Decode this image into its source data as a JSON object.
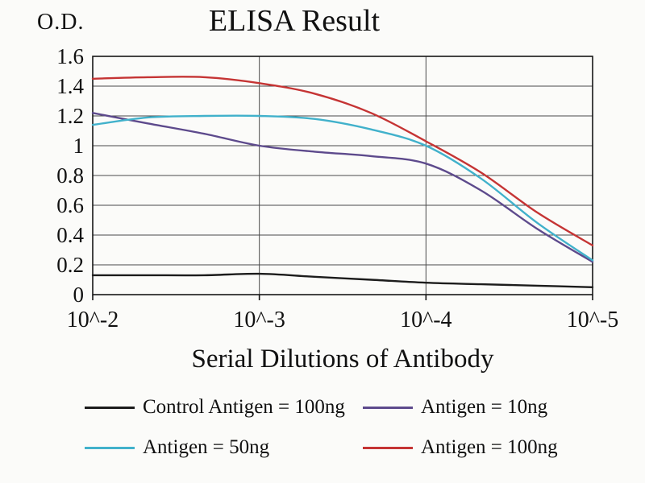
{
  "chart_data": {
    "type": "line",
    "title": "ELISA Result",
    "ylabel": "O.D.",
    "xlabel": "Serial Dilutions of Antibody",
    "x_tick_labels": [
      "10^-2",
      "10^-3",
      "10^-4",
      "10^-5"
    ],
    "x_ticks": [
      2,
      3,
      4,
      5
    ],
    "y_ticks": [
      0,
      0.2,
      0.4,
      0.6,
      0.8,
      1.0,
      1.2,
      1.4,
      1.6
    ],
    "y_tick_labels": [
      "0",
      "0.2",
      "0.4",
      "0.6",
      "0.8",
      "1",
      "1.2",
      "1.4",
      "1.6"
    ],
    "xlim": [
      2,
      5
    ],
    "ylim": [
      0,
      1.6
    ],
    "grid": true,
    "legend_position": "bottom",
    "x": [
      2,
      2.33,
      2.67,
      3,
      3.33,
      3.67,
      4,
      4.33,
      4.67,
      5
    ],
    "series": [
      {
        "id": "control-antigen-100ng",
        "name": "Control Antigen = 100ng",
        "color": "#1c1c1c",
        "values": [
          0.13,
          0.13,
          0.13,
          0.14,
          0.12,
          0.1,
          0.08,
          0.07,
          0.06,
          0.05
        ]
      },
      {
        "id": "antigen-10ng",
        "name": "Antigen = 10ng",
        "color": "#5d4a8c",
        "values": [
          1.22,
          1.15,
          1.08,
          1.0,
          0.96,
          0.93,
          0.88,
          0.7,
          0.44,
          0.22
        ]
      },
      {
        "id": "antigen-50ng",
        "name": "Antigen = 50ng",
        "color": "#41b1cb",
        "values": [
          1.14,
          1.19,
          1.2,
          1.2,
          1.18,
          1.11,
          1.0,
          0.78,
          0.48,
          0.23
        ]
      },
      {
        "id": "antigen-100ng",
        "name": "Antigen = 100ng",
        "color": "#c53434",
        "values": [
          1.45,
          1.46,
          1.46,
          1.42,
          1.35,
          1.22,
          1.03,
          0.82,
          0.55,
          0.33
        ]
      }
    ]
  }
}
